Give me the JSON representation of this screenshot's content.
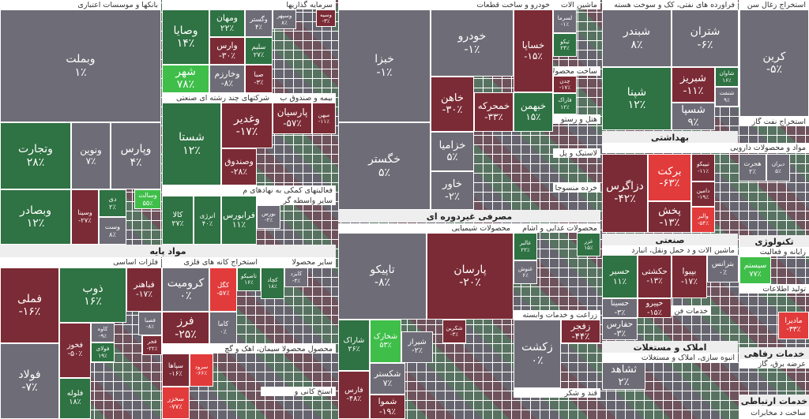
{
  "sections": [
    {
      "title": "بانکها و موسسات اعتباری",
      "bold": false
    },
    {
      "title": "سرمایه گذاریها",
      "bold": false
    },
    {
      "title": "شرکتهای چند رشته ای صنعتی",
      "bold": false
    },
    {
      "title": "بیمه و صندوق ب",
      "bold": false
    },
    {
      "title": "فعالیتهای کمکی به نهادهای م",
      "bold": false
    },
    {
      "title": "سایر واسطه گر",
      "bold": false
    },
    {
      "title": "مواد پایه",
      "bold": true
    },
    {
      "title": "فلزات اساسی",
      "bold": false
    },
    {
      "title": "استخراج کانه های فلزی",
      "bold": false
    },
    {
      "title": "سایر محصولا",
      "bold": false
    },
    {
      "title": "محصول محصولا سیمان، اهک و گچ",
      "bold": false
    },
    {
      "title": "استخ کانی و",
      "bold": false
    },
    {
      "title": "خودرو و ساخت قطعات",
      "bold": false
    },
    {
      "title": "ماشین الات",
      "bold": false
    },
    {
      "title": "ساخت محصولا",
      "bold": false
    },
    {
      "title": "هتل و رستو",
      "bold": false
    },
    {
      "title": "لاستیک و پل",
      "bold": false
    },
    {
      "title": "خرده منسوجا",
      "bold": false
    },
    {
      "title": "مصرفی غیردوره ای",
      "bold": true
    },
    {
      "title": "محصولات شیمیایی",
      "bold": false
    },
    {
      "title": "محصولات غذایی و اشام",
      "bold": false
    },
    {
      "title": "زراعت و خدمات وابسته",
      "bold": false
    },
    {
      "title": "قند و شکر",
      "bold": false
    },
    {
      "title": "فراورده های نفتی، کک و سوخت هسته",
      "bold": false
    },
    {
      "title": "بهداشتی",
      "bold": true
    },
    {
      "title": "مواد و محصولات دارویی",
      "bold": false
    },
    {
      "title": "صنعتی",
      "bold": true
    },
    {
      "title": "ماشین الات و دست",
      "bold": false
    },
    {
      "title": "حمل ونقل، انبارد",
      "bold": false
    },
    {
      "title": "خدمات فن",
      "bold": false
    },
    {
      "title": "املاک و مستغلات",
      "bold": true
    },
    {
      "title": "انبوه سازی، املاک و مستغلات",
      "bold": false
    },
    {
      "title": "استخراج زغال سن",
      "bold": false
    },
    {
      "title": "استخراج نفت گاز",
      "bold": false
    },
    {
      "title": "تکنولوژی",
      "bold": true
    },
    {
      "title": "رایانه و فعالیت",
      "bold": false
    },
    {
      "title": "تولید اطلاعات",
      "bold": false
    },
    {
      "title": "خدمات رفاهی",
      "bold": true
    },
    {
      "title": "عرضه برق، گاز",
      "bold": false
    },
    {
      "title": "خدمات ارتباطی",
      "bold": true
    },
    {
      "title": "ساخت د مخابرات",
      "bold": false
    }
  ],
  "tiles": [
    {
      "name": "وبملت",
      "change": "۱٪",
      "color": "#6e6d77"
    },
    {
      "name": "وتجارت",
      "change": "۲۸٪",
      "color": "#2f7243"
    },
    {
      "name": "ونوین",
      "change": "۷٪",
      "color": "#6e6d77"
    },
    {
      "name": "وپارس",
      "change": "۴٪",
      "color": "#6e6d77"
    },
    {
      "name": "وبصادر",
      "change": "۱۲٪",
      "color": "#2f7243"
    },
    {
      "name": "وسینا",
      "change": "-۲۷٪",
      "color": "#7b2b35"
    },
    {
      "name": "دی",
      "change": "۲٪",
      "color": "#2f7243"
    },
    {
      "name": "وست",
      "change": "۸٪",
      "color": "#6e6d77"
    },
    {
      "name": "وسالت",
      "change": "۵۵٪",
      "color": "#3fbf4a"
    },
    {
      "name": "وصایا",
      "change": "۱۴٪",
      "color": "#2f7243"
    },
    {
      "name": "ومهان",
      "change": "۲۲٪",
      "color": "#2f7243"
    },
    {
      "name": "وگستر",
      "change": "۴٪",
      "color": "#6e6d77"
    },
    {
      "name": "وسپهر",
      "change": "۸٪",
      "color": "#6e6d77"
    },
    {
      "name": "وسیه",
      "change": "-۳٪",
      "color": "#7b2b35"
    },
    {
      "name": "وارس",
      "change": "-۳۰٪",
      "color": "#7b2b35"
    },
    {
      "name": "سلیم",
      "change": "۲۷٪",
      "color": "#2f7243"
    },
    {
      "name": "شهر",
      "change": "۷۸٪",
      "color": "#3fbf4a"
    },
    {
      "name": "وخارزم",
      "change": "-۸٪",
      "color": "#6e6d77"
    },
    {
      "name": "صبا",
      "change": "-۳٪",
      "color": "#7b2b35"
    },
    {
      "name": "شستا",
      "change": "۱۲٪",
      "color": "#2f7243"
    },
    {
      "name": "وغدیر",
      "change": "-۱۷٪",
      "color": "#7b2b35"
    },
    {
      "name": "وصندوق",
      "change": "-۲۸٪",
      "color": "#7b2b35"
    },
    {
      "name": "پارسیان",
      "change": "-۵۷٪",
      "color": "#7b2b35"
    },
    {
      "name": "میهن",
      "change": "-۱۱٪",
      "color": "#7b2b35"
    },
    {
      "name": "کالا",
      "change": "۲۷٪",
      "color": "#2f7243"
    },
    {
      "name": "انرژی",
      "change": "۴۰٪",
      "color": "#2f7243"
    },
    {
      "name": "فرابورس",
      "change": "۱۱٪",
      "color": "#2f7243"
    },
    {
      "name": "بورس",
      "change": "-۲٪",
      "color": "#6e6d77"
    },
    {
      "name": "فملی",
      "change": "-۱۶٪",
      "color": "#7b2b35"
    },
    {
      "name": "ذوب",
      "change": "۱۶٪",
      "color": "#2f7243"
    },
    {
      "name": "فباهنر",
      "change": "-۱۷٪",
      "color": "#7b2b35"
    },
    {
      "name": "فولاد",
      "change": "-۷٪",
      "color": "#6e6d77"
    },
    {
      "name": "فخوز",
      "change": "-۵۰٪",
      "color": "#7b2b35"
    },
    {
      "name": "کاوه",
      "change": "-۹٪",
      "color": "#6e6d77"
    },
    {
      "name": "فصبا",
      "change": "-۸٪",
      "color": "#6e6d77"
    },
    {
      "name": "فولای",
      "change": "۱۹٪",
      "color": "#2f7243"
    },
    {
      "name": "فجر",
      "change": "-۲۲٪",
      "color": "#7b2b35"
    },
    {
      "name": "فلوله",
      "change": "۱۸٪",
      "color": "#2f7243"
    },
    {
      "name": "کرومیت",
      "change": "۰٪",
      "color": "#6e6d77"
    },
    {
      "name": "کگل",
      "change": "-۵۷٪",
      "color": "#e23b3b"
    },
    {
      "name": "تاصیکو",
      "change": "۱۶٪",
      "color": "#2f7243"
    },
    {
      "name": "فرز",
      "change": "-۲۵٪",
      "color": "#7b2b35"
    },
    {
      "name": "کاما",
      "change": "۰٪",
      "color": "#6e6d77"
    },
    {
      "name": "کچاد",
      "change": "۱۸٪",
      "color": "#2f7243"
    },
    {
      "name": "کایزد",
      "change": "-۴٪",
      "color": "#6e6d77"
    },
    {
      "name": "سپاها",
      "change": "-۱۶٪",
      "color": "#7b2b35"
    },
    {
      "name": "سرود",
      "change": "-۶۶٪",
      "color": "#e23b3b"
    },
    {
      "name": "سخزر",
      "change": "-۷۷٪",
      "color": "#e23b3b"
    },
    {
      "name": "خبزا",
      "change": "-۱٪",
      "color": "#6e6d77"
    },
    {
      "name": "خودرو",
      "change": "-۱٪",
      "color": "#6e6d77"
    },
    {
      "name": "خساپا",
      "change": "-۱۵٪",
      "color": "#7b2b35"
    },
    {
      "name": "خگستر",
      "change": "۵٪",
      "color": "#6e6d77"
    },
    {
      "name": "خاهن",
      "change": "-۳۰٪",
      "color": "#7b2b35"
    },
    {
      "name": "خمحرکه",
      "change": "-۳۳٪",
      "color": "#7b2b35"
    },
    {
      "name": "خبهمن",
      "change": "۱۵٪",
      "color": "#2f7243"
    },
    {
      "name": "خزامیا",
      "change": "۵٪",
      "color": "#6e6d77"
    },
    {
      "name": "خاور",
      "change": "-۲٪",
      "color": "#6e6d77"
    },
    {
      "name": "لسرما",
      "change": "-۱٪",
      "color": "#6e6d77"
    },
    {
      "name": "تیکو",
      "change": "۲۴٪",
      "color": "#2f7243"
    },
    {
      "name": "چدن",
      "change": "-۱۷٪",
      "color": "#7b2b35"
    },
    {
      "name": "فاراک",
      "change": "۱۲٪",
      "color": "#2f7243"
    },
    {
      "name": "تاپیکو",
      "change": "-۸٪",
      "color": "#6e6d77"
    },
    {
      "name": "پارسان",
      "change": "-۲۰٪",
      "color": "#7b2b35"
    },
    {
      "name": "شاراک",
      "change": "۲۶٪",
      "color": "#2f7243"
    },
    {
      "name": "شخارک",
      "change": "۵۳٪",
      "color": "#3fbf4a"
    },
    {
      "name": "شیراز",
      "change": "-۲٪",
      "color": "#6e6d77"
    },
    {
      "name": "شکربن",
      "change": "-۳٪",
      "color": "#7b2b35"
    },
    {
      "name": "فارس",
      "change": "-۴۸٪",
      "color": "#7b2b35"
    },
    {
      "name": "شکستر",
      "change": "۷٪",
      "color": "#6e6d77"
    },
    {
      "name": "شموا",
      "change": "-۱۹٪",
      "color": "#7b2b35"
    },
    {
      "name": "غالبر",
      "change": "۲۲٪",
      "color": "#2f7243"
    },
    {
      "name": "غنوش",
      "change": "۶٪",
      "color": "#6e6d77"
    },
    {
      "name": "غزر",
      "change": "۱۵٪",
      "color": "#2f7243"
    },
    {
      "name": "زکشت",
      "change": "۰٪",
      "color": "#6e6d77"
    },
    {
      "name": "زفجر",
      "change": "-۴۴٪",
      "color": "#7b2b35"
    },
    {
      "name": "شبندر",
      "change": "۸٪",
      "color": "#6e6d77"
    },
    {
      "name": "شتران",
      "change": "-۶٪",
      "color": "#6e6d77"
    },
    {
      "name": "شپنا",
      "change": "۱۲٪",
      "color": "#2f7243"
    },
    {
      "name": "شبریز",
      "change": "-۱۱٪",
      "color": "#7b2b35"
    },
    {
      "name": "شاوان",
      "change": "۱۶٪",
      "color": "#2f7243"
    },
    {
      "name": "شنفت",
      "change": "۹٪",
      "color": "#6e6d77"
    },
    {
      "name": "شسپا",
      "change": "۹٪",
      "color": "#6e6d77"
    },
    {
      "name": "دزاگرس",
      "change": "-۴۲٪",
      "color": "#7b2b35"
    },
    {
      "name": "برکت",
      "change": "-۶۳٪",
      "color": "#e23b3b"
    },
    {
      "name": "پخش",
      "change": "-۱۳٪",
      "color": "#7b2b35"
    },
    {
      "name": "تیپیکو",
      "change": "-۱۱٪",
      "color": "#7b2b35"
    },
    {
      "name": "دامین",
      "change": "-۱۹٪",
      "color": "#7b2b35"
    },
    {
      "name": "والبر",
      "change": "-۵۴٪",
      "color": "#e23b3b"
    },
    {
      "name": "هجرت",
      "change": "۲٪",
      "color": "#6e6d77"
    },
    {
      "name": "دیران",
      "change": "۵٪",
      "color": "#6e6d77"
    },
    {
      "name": "حسیر",
      "change": "۱۱٪",
      "color": "#2f7243"
    },
    {
      "name": "حکشتی",
      "change": "-۱۳٪",
      "color": "#7b2b35"
    },
    {
      "name": "بپیوا",
      "change": "-۱۷٪",
      "color": "#7b2b35"
    },
    {
      "name": "بترانس",
      "change": "۰٪",
      "color": "#6e6d77"
    },
    {
      "name": "حسینا",
      "change": "-۳٪",
      "color": "#6e6d77"
    },
    {
      "name": "حپیرو",
      "change": "-۱۵٪",
      "color": "#7b2b35"
    },
    {
      "name": "حفارس",
      "change": "-۳٪",
      "color": "#6e6d77"
    },
    {
      "name": "ثشاهد",
      "change": "۲٪",
      "color": "#6e6d77"
    },
    {
      "name": "کرین",
      "change": "-۵٪",
      "color": "#6e6d77"
    },
    {
      "name": "سیستم",
      "change": "۷۷٪",
      "color": "#3fbf4a"
    },
    {
      "name": "مادیرا",
      "change": "-۳۳٪",
      "color": "#e23b3b"
    }
  ]
}
